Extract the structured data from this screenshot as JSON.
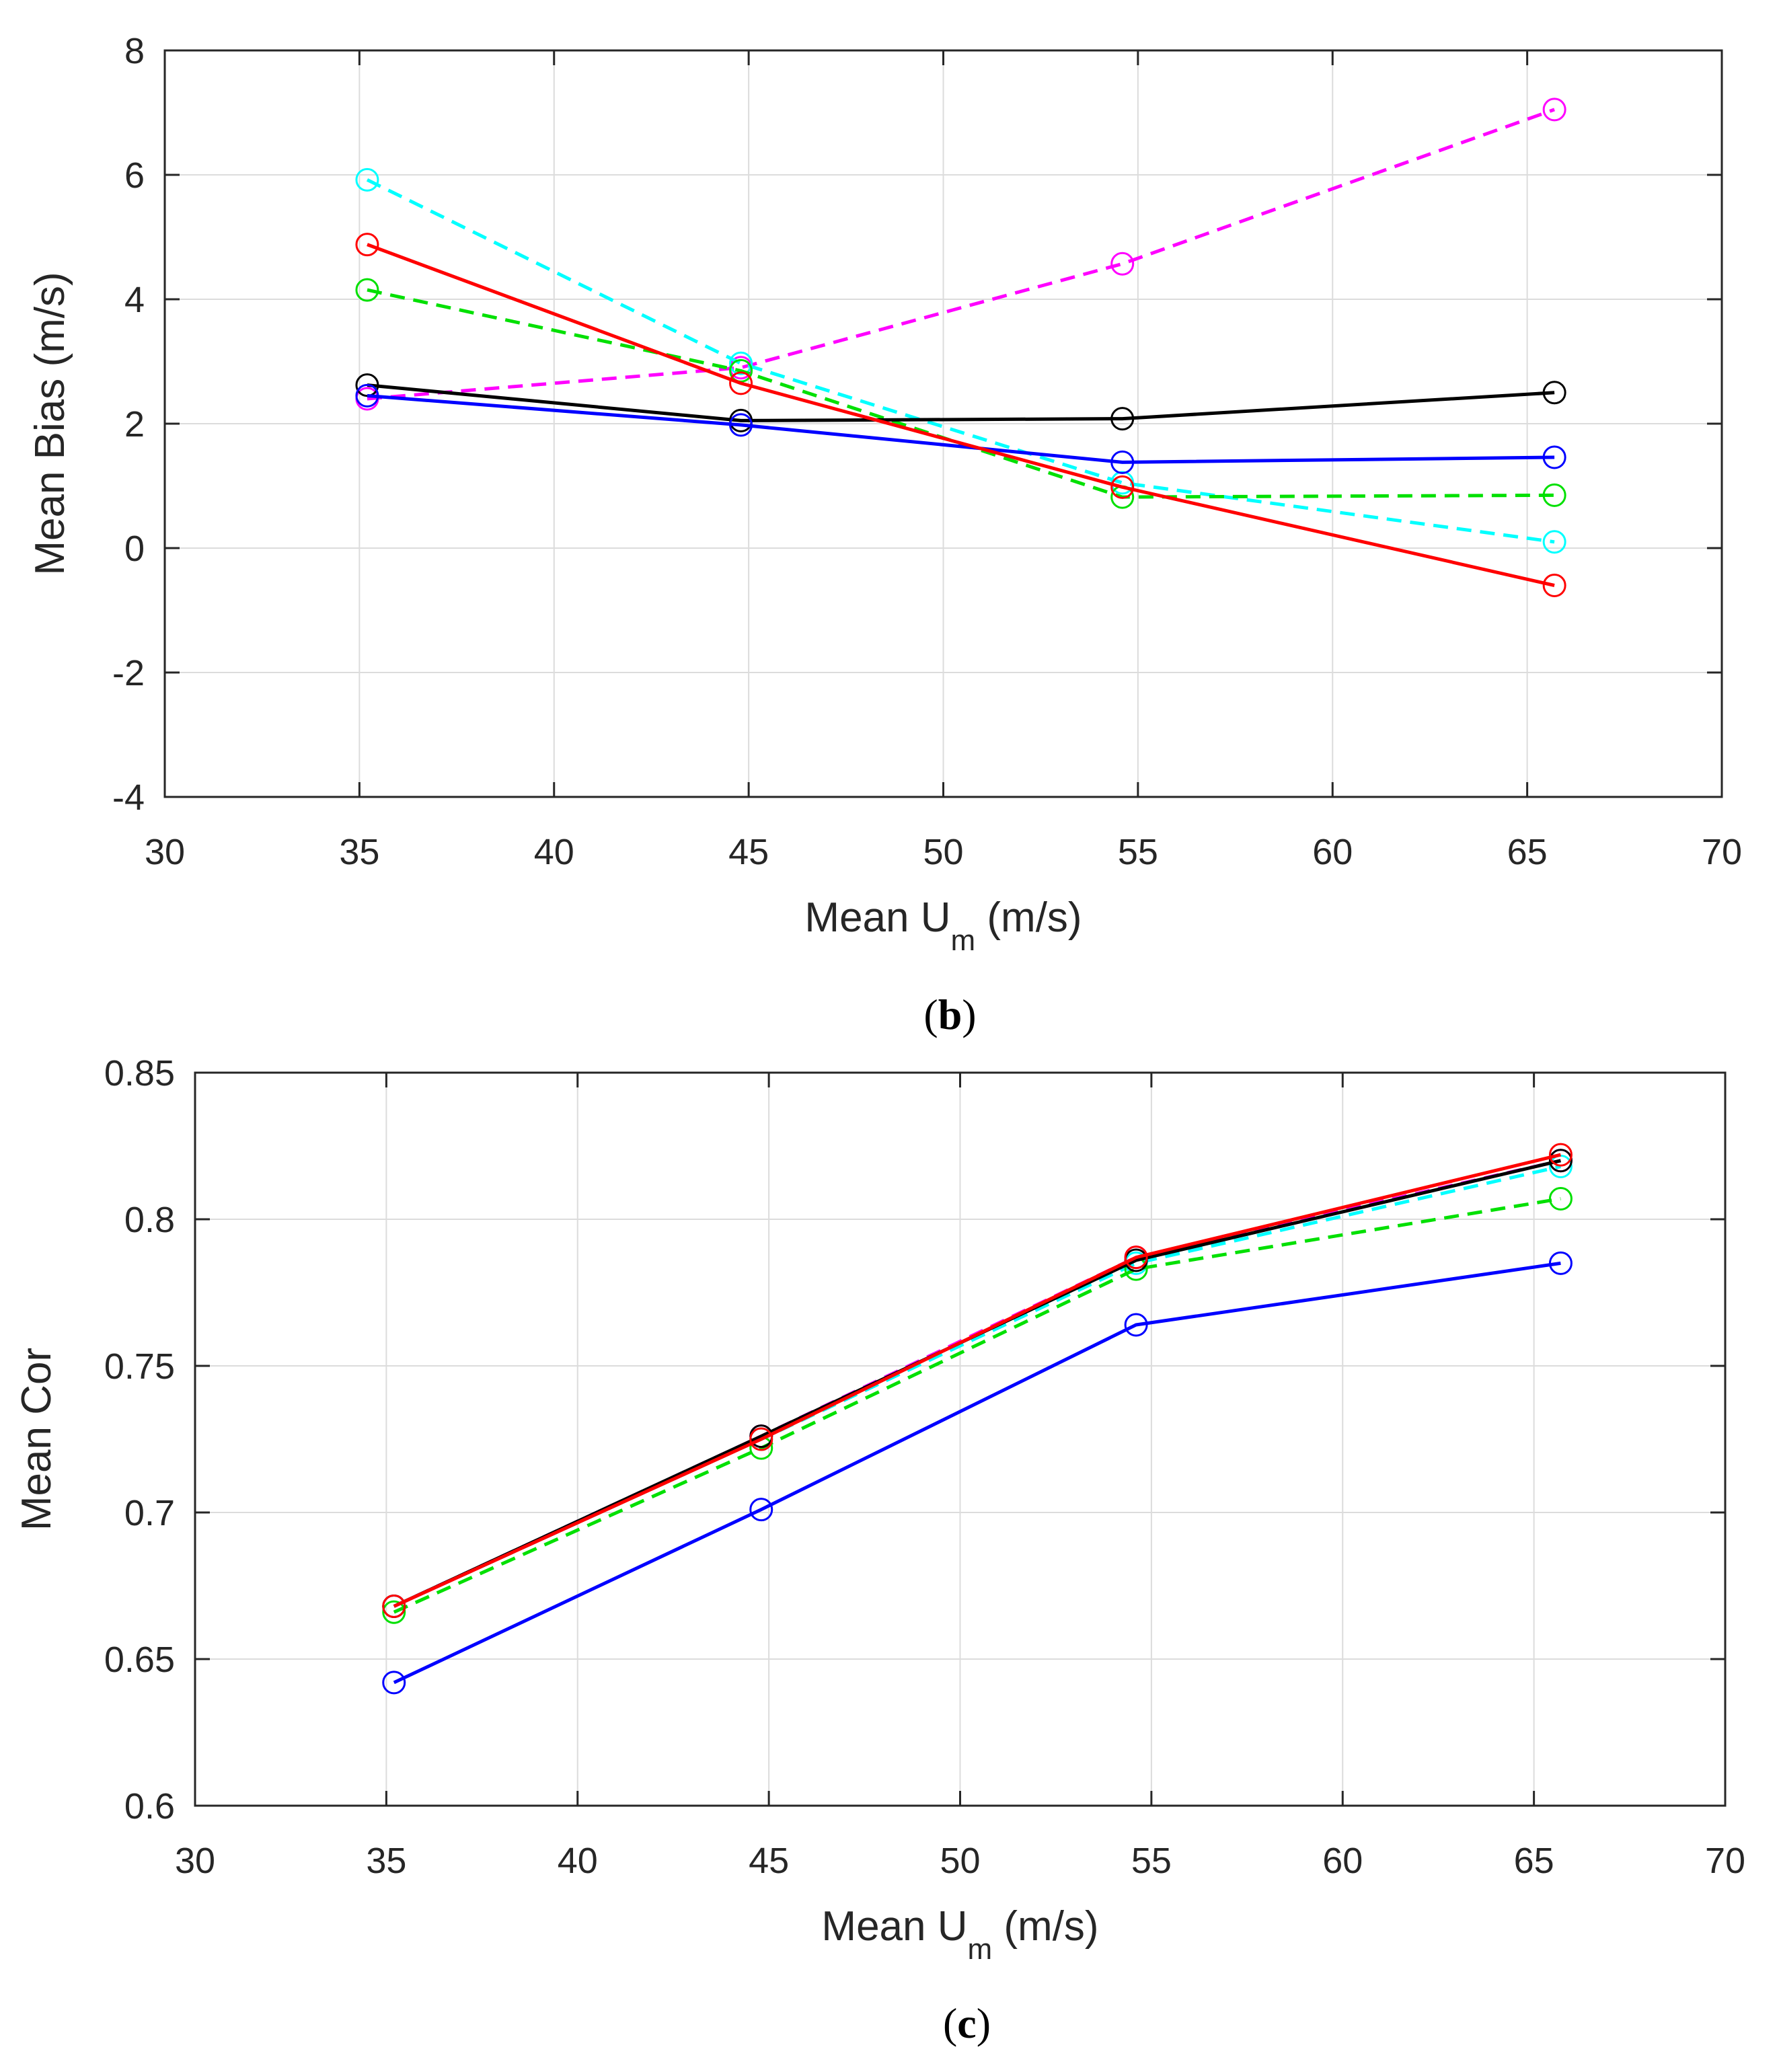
{
  "chart_data": [
    {
      "type": "line",
      "panel_label": "b",
      "xlabel": {
        "main": "Mean U",
        "sub": "m",
        "tail": " (m/s)"
      },
      "ylabel": "Mean Bias (m/s)",
      "xlim": [
        30,
        70
      ],
      "ylim": [
        -4,
        8
      ],
      "xticks": [
        30,
        35,
        40,
        45,
        50,
        55,
        60,
        65,
        70
      ],
      "yticks": [
        -4,
        -2,
        0,
        2,
        4,
        6,
        8
      ],
      "grid": true,
      "series": [
        {
          "color": "#ff00ff",
          "dash": true,
          "x": [
            35.2,
            44.8,
            54.6,
            65.7
          ],
          "y": [
            2.4,
            2.9,
            4.57,
            7.05
          ]
        },
        {
          "color": "#00ffff",
          "dash": true,
          "x": [
            35.2,
            44.8,
            54.6,
            65.7
          ],
          "y": [
            5.92,
            2.97,
            1.05,
            0.1
          ]
        },
        {
          "color": "#00e000",
          "dash": true,
          "x": [
            35.2,
            44.8,
            54.6,
            65.7
          ],
          "y": [
            4.15,
            2.85,
            0.82,
            0.85
          ]
        },
        {
          "color": "#000000",
          "dash": false,
          "x": [
            35.2,
            44.8,
            54.6,
            65.7
          ],
          "y": [
            2.62,
            2.05,
            2.08,
            2.5
          ]
        },
        {
          "color": "#0000ff",
          "dash": false,
          "x": [
            35.2,
            44.8,
            54.6,
            65.7
          ],
          "y": [
            2.45,
            1.98,
            1.38,
            1.46
          ]
        },
        {
          "color": "#ff0000",
          "dash": false,
          "x": [
            35.2,
            44.8,
            54.6,
            65.7
          ],
          "y": [
            4.88,
            2.65,
            0.98,
            -0.6
          ]
        }
      ]
    },
    {
      "type": "line",
      "panel_label": "c",
      "xlabel": {
        "main": "Mean U",
        "sub": "m",
        "tail": " (m/s)"
      },
      "ylabel": "Mean Cor",
      "xlim": [
        30,
        70
      ],
      "ylim": [
        0.6,
        0.85
      ],
      "xticks": [
        30,
        35,
        40,
        45,
        50,
        55,
        60,
        65,
        70
      ],
      "yticks": [
        0.6,
        0.65,
        0.7,
        0.75,
        0.8,
        0.85
      ],
      "grid": true,
      "series": [
        {
          "color": "#ff00ff",
          "dash": true,
          "x": [
            35.2,
            44.8,
            54.6,
            65.7
          ],
          "y": [
            0.668,
            0.726,
            0.787,
            0.82
          ]
        },
        {
          "color": "#00ffff",
          "dash": true,
          "x": [
            35.2,
            44.8,
            54.6,
            65.7
          ],
          "y": [
            0.668,
            0.725,
            0.785,
            0.818
          ]
        },
        {
          "color": "#00e000",
          "dash": true,
          "x": [
            35.2,
            44.8,
            54.6,
            65.7
          ],
          "y": [
            0.666,
            0.722,
            0.783,
            0.807
          ]
        },
        {
          "color": "#0000ff",
          "dash": false,
          "x": [
            35.2,
            44.8,
            54.6,
            65.7
          ],
          "y": [
            0.642,
            0.701,
            0.764,
            0.785
          ]
        },
        {
          "color": "#000000",
          "dash": false,
          "x": [
            35.2,
            44.8,
            54.6,
            65.7
          ],
          "y": [
            0.668,
            0.726,
            0.786,
            0.82
          ]
        },
        {
          "color": "#ff0000",
          "dash": false,
          "x": [
            35.2,
            44.8,
            54.6,
            65.7
          ],
          "y": [
            0.668,
            0.725,
            0.787,
            0.822
          ]
        }
      ]
    }
  ]
}
